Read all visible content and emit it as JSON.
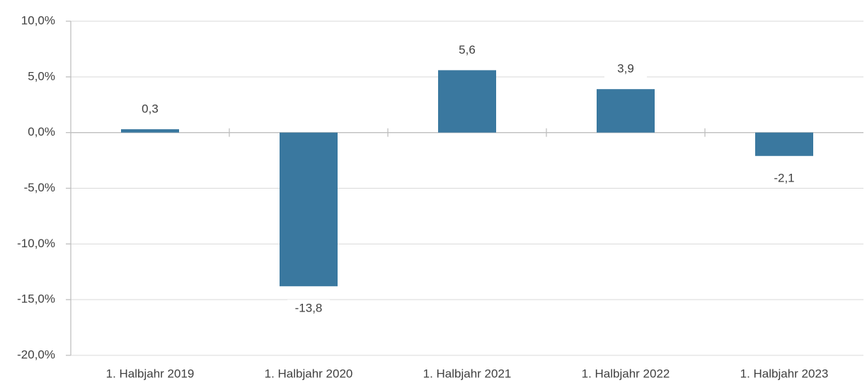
{
  "chart_data": {
    "type": "bar",
    "categories": [
      "1. Halbjahr 2019",
      "1. Halbjahr 2020",
      "1. Halbjahr 2021",
      "1. Halbjahr 2022",
      "1. Halbjahr 2023"
    ],
    "values": [
      0.3,
      -13.8,
      5.6,
      3.9,
      -2.1
    ],
    "value_labels": [
      "0,3",
      "-13,8",
      "5,6",
      "3,9",
      "-2,1"
    ],
    "color": "#3a789f",
    "ylim": [
      -20,
      10
    ],
    "yticks": [
      {
        "value": -20,
        "label": "-20,0%"
      },
      {
        "value": -15,
        "label": "-15,0%"
      },
      {
        "value": -10,
        "label": "-10,0%"
      },
      {
        "value": -5,
        "label": "-5,0%"
      },
      {
        "value": 0,
        "label": "0,0%"
      },
      {
        "value": 5,
        "label": "5,0%"
      },
      {
        "value": 10,
        "label": "10,0%"
      }
    ],
    "grid": true
  }
}
